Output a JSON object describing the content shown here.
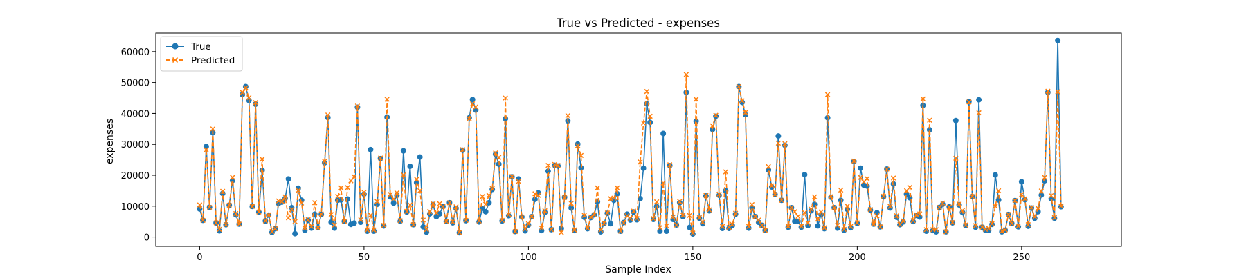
{
  "chart_data": {
    "type": "line",
    "title": "True vs Predicted - expenses",
    "xlabel": "Sample Index",
    "ylabel": "expenses",
    "xlim": [
      -13.35,
      280.35
    ],
    "ylim": [
      -3000,
      66000
    ],
    "xticks": [
      0,
      50,
      100,
      150,
      200,
      250
    ],
    "yticks": [
      0,
      10000,
      20000,
      30000,
      40000,
      50000,
      60000
    ],
    "legend_location": "top-left",
    "grid": false,
    "series": [
      {
        "name": "True",
        "color": "#1f77b4",
        "marker": "circle",
        "line_style": "solid",
        "values": [
          9100,
          5400,
          29300,
          9600,
          33800,
          4600,
          2000,
          14100,
          4000,
          10300,
          18300,
          7200,
          4200,
          46100,
          48700,
          44200,
          9900,
          43000,
          8100,
          21600,
          5200,
          7100,
          1500,
          2700,
          10900,
          11300,
          12500,
          18800,
          9500,
          1100,
          15800,
          11900,
          2200,
          5400,
          2900,
          7400,
          3000,
          7300,
          24000,
          38700,
          4800,
          2900,
          11900,
          12000,
          5100,
          12300,
          4100,
          4500,
          42000,
          4800,
          13900,
          1900,
          28300,
          1900,
          10600,
          25400,
          3600,
          38800,
          13000,
          11000,
          13500,
          5100,
          27900,
          8100,
          22900,
          4000,
          17600,
          25900,
          3300,
          1600,
          7500,
          10500,
          6600,
          7500,
          9900,
          5100,
          11100,
          4600,
          9300,
          1400,
          28100,
          5300,
          38600,
          44500,
          41100,
          4900,
          9300,
          8200,
          11100,
          15400,
          26800,
          23600,
          5200,
          38300,
          6900,
          19500,
          1800,
          18800,
          6500,
          2000,
          3900,
          6600,
          12200,
          14300,
          2100,
          8000,
          21300,
          2400,
          23200,
          23000,
          2800,
          12900,
          37600,
          9400,
          2100,
          30100,
          22400,
          6400,
          2700,
          6300,
          7200,
          11400,
          1700,
          4400,
          7700,
          4300,
          11900,
          14000,
          1900,
          4700,
          7400,
          5500,
          8100,
          5600,
          12400,
          22300,
          43100,
          37100,
          5700,
          9900,
          1900,
          33500,
          1900,
          23100,
          5700,
          3900,
          11100,
          6600,
          46800,
          3100,
          1000,
          37500,
          6100,
          4300,
          13300,
          8500,
          34800,
          39100,
          13500,
          2800,
          15000,
          2800,
          3700,
          7400,
          48700,
          43600,
          39600,
          2900,
          9500,
          6600,
          4800,
          3800,
          2200,
          21700,
          16200,
          13800,
          32700,
          11900,
          29700,
          3200,
          9500,
          5100,
          5100,
          3200,
          20200,
          3700,
          8500,
          10600,
          3600,
          7300,
          2700,
          38600,
          12900,
          9500,
          2900,
          11900,
          2200,
          9000,
          3000,
          24500,
          4400,
          22300,
          16800,
          16500,
          8700,
          4200,
          7900,
          3300,
          13000,
          22000,
          9400,
          17200,
          6400,
          4000,
          4900,
          13900,
          12700,
          5000,
          7000,
          6500,
          42600,
          1900,
          34700,
          2100,
          1700,
          9600,
          10600,
          1700,
          9800,
          4600,
          37700,
          10400,
          8000,
          3700,
          43900,
          13100,
          3200,
          44400,
          3200,
          2200,
          2200,
          4100,
          20100,
          12000,
          1700,
          2200,
          7300,
          4400,
          11800,
          3300,
          17900,
          12100,
          3500,
          9400,
          6100,
          8200,
          13600,
          18200,
          46800,
          12400,
          6100,
          63600,
          9800
        ]
      },
      {
        "name": "Predicted",
        "color": "#ff7f0e",
        "marker": "x",
        "line_style": "dashed",
        "values": [
          10400,
          5400,
          28200,
          9600,
          35000,
          4600,
          2500,
          14800,
          4000,
          10300,
          19300,
          7600,
          4200,
          46800,
          48300,
          45100,
          9900,
          43500,
          8100,
          25200,
          5200,
          7200,
          1800,
          2700,
          11700,
          11500,
          13000,
          6200,
          8900,
          5000,
          15100,
          11000,
          2900,
          5600,
          3400,
          11100,
          3000,
          7500,
          24500,
          39500,
          7300,
          3900,
          13200,
          15900,
          5100,
          16000,
          18200,
          19500,
          42400,
          5600,
          14500,
          2300,
          7100,
          2300,
          11500,
          25600,
          3800,
          44600,
          13800,
          12300,
          14300,
          5300,
          20100,
          8300,
          10400,
          4000,
          18700,
          15000,
          5500,
          2400,
          8300,
          10800,
          7800,
          10800,
          9900,
          5100,
          11100,
          4900,
          9800,
          1500,
          28300,
          5400,
          38300,
          43100,
          42100,
          5200,
          13100,
          10600,
          13500,
          15700,
          27200,
          25800,
          5400,
          45000,
          7300,
          19600,
          1800,
          18000,
          6500,
          2600,
          4300,
          6600,
          14000,
          13500,
          2900,
          8500,
          23200,
          2400,
          23500,
          23200,
          1500,
          12800,
          39300,
          10900,
          2300,
          29600,
          26400,
          7000,
          2900,
          6500,
          7200,
          15900,
          2300,
          4500,
          7800,
          12400,
          12600,
          15900,
          1900,
          4600,
          6900,
          6000,
          8400,
          6000,
          24300,
          36900,
          47100,
          39100,
          6000,
          11400,
          3100,
          17500,
          3600,
          23400,
          6500,
          3900,
          11500,
          7100,
          52600,
          7000,
          1300,
          44600,
          6300,
          4800,
          13500,
          8800,
          36000,
          39400,
          13900,
          3400,
          21100,
          3100,
          4100,
          7700,
          48700,
          44100,
          40300,
          3400,
          10500,
          6600,
          5500,
          3800,
          2200,
          22800,
          16600,
          13800,
          30400,
          11900,
          30200,
          3500,
          9500,
          8200,
          6700,
          3500,
          7900,
          4500,
          9000,
          13000,
          5800,
          8100,
          3000,
          46100,
          13100,
          9500,
          3800,
          15200,
          2500,
          10000,
          3400,
          24600,
          4600,
          19300,
          17900,
          18900,
          8900,
          4200,
          6900,
          3300,
          13200,
          22000,
          9900,
          19100,
          6900,
          4100,
          5200,
          15000,
          16100,
          5300,
          7200,
          7500,
          44700,
          2400,
          37800,
          2400,
          2400,
          9600,
          11000,
          1700,
          9700,
          4700,
          25500,
          10700,
          8600,
          3900,
          43700,
          13100,
          3700,
          40200,
          3200,
          2500,
          2800,
          4300,
          10000,
          15000,
          1900,
          2300,
          7300,
          4400,
          11800,
          3600,
          13800,
          12400,
          4000,
          9600,
          6500,
          9300,
          14900,
          19300,
          47200,
          13400,
          6300,
          47000,
          10000
        ]
      }
    ]
  }
}
